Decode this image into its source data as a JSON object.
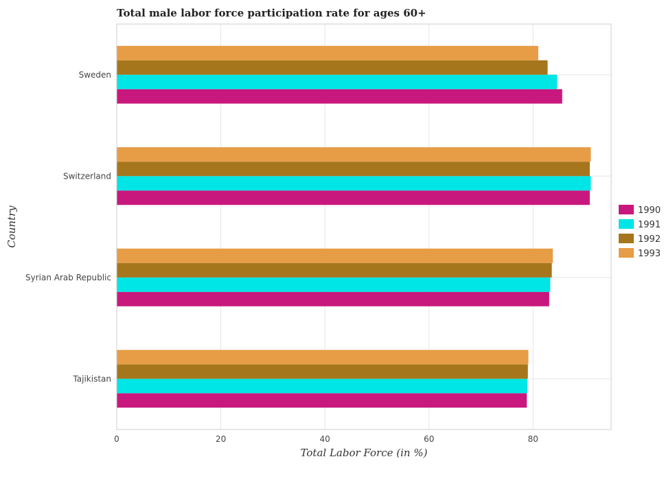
{
  "chart_data": {
    "type": "bar",
    "orientation": "horizontal",
    "title": "Total male labor force participation rate for ages 60+",
    "xlabel": "Total Labor Force (in %)",
    "ylabel": "Country",
    "xlim": [
      0,
      95
    ],
    "xticks": [
      0,
      20,
      40,
      60,
      80
    ],
    "grid": true,
    "legend_position": "right",
    "categories": [
      "Sweden",
      "Switzerland",
      "Syrian Arab Republic",
      "Tajikistan"
    ],
    "series": [
      {
        "name": "1990",
        "color": "#c8187d",
        "values": [
          85.6,
          90.9,
          83.1,
          78.8
        ]
      },
      {
        "name": "1991",
        "color": "#00e5e5",
        "values": [
          84.6,
          91.1,
          83.3,
          78.9
        ]
      },
      {
        "name": "1992",
        "color": "#a6761d",
        "values": [
          82.8,
          90.9,
          83.6,
          79.0
        ]
      },
      {
        "name": "1993",
        "color": "#e79c46",
        "values": [
          81.0,
          91.1,
          83.8,
          79.1
        ]
      }
    ]
  }
}
